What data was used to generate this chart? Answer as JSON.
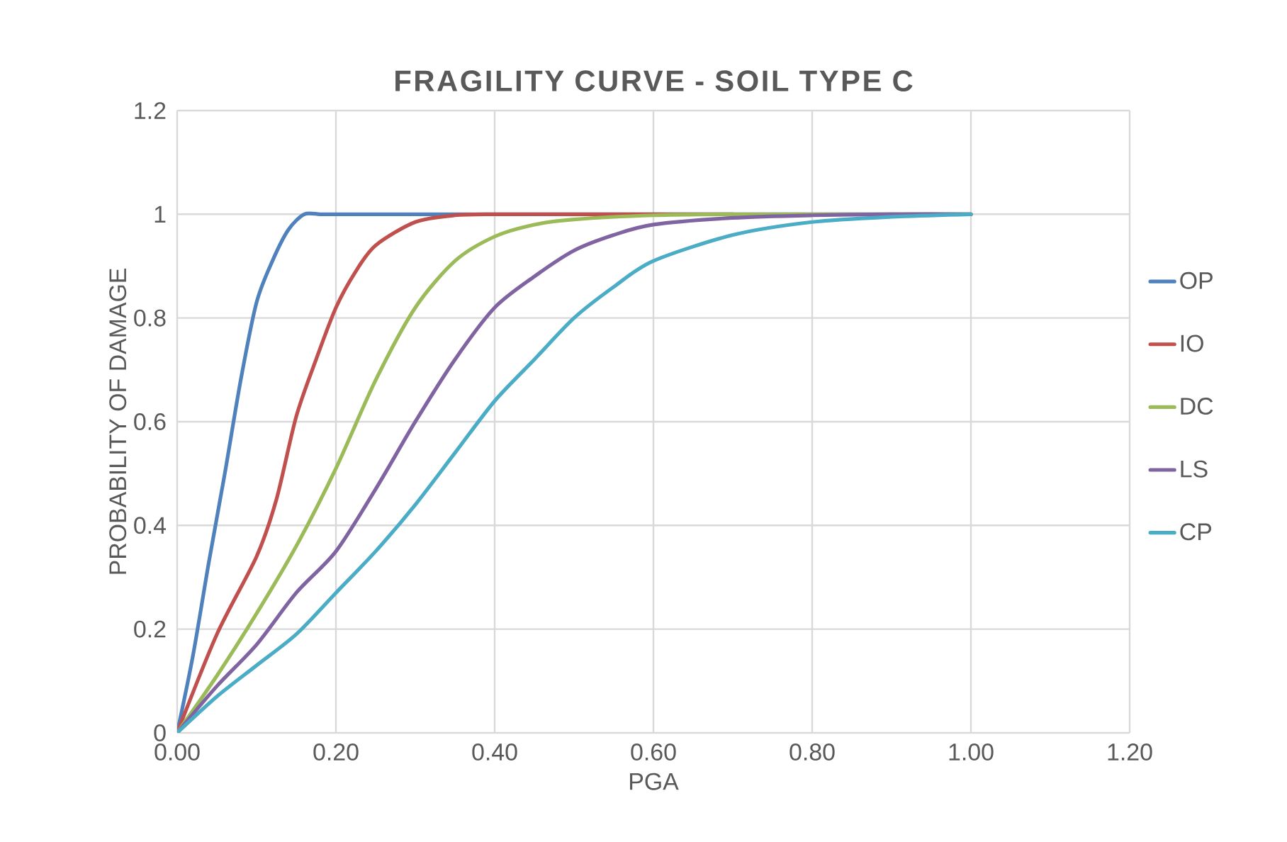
{
  "chart_data": {
    "type": "line",
    "title": "FRAGILITY CURVE - SOIL TYPE C",
    "xlabel": "PGA",
    "ylabel": "PROBABILITY OF DAMAGE",
    "xlim": [
      0,
      1.2
    ],
    "ylim": [
      0,
      1.2
    ],
    "xticks": [
      {
        "value": 0,
        "label": "0.00"
      },
      {
        "value": 0.2,
        "label": "0.20"
      },
      {
        "value": 0.4,
        "label": "0.40"
      },
      {
        "value": 0.6,
        "label": "0.60"
      },
      {
        "value": 0.8,
        "label": "0.80"
      },
      {
        "value": 1,
        "label": "1.00"
      },
      {
        "value": 1.2,
        "label": "1.20"
      }
    ],
    "yticks": [
      0,
      0.2,
      0.4,
      0.6,
      0.8,
      1,
      1.2
    ],
    "grid": true,
    "legend": "right",
    "marker": "none",
    "line_style": "solid",
    "series": [
      {
        "name": "OP",
        "color": "#4f81bd",
        "x": [
          0,
          0.02,
          0.04,
          0.06,
          0.08,
          0.1,
          0.12,
          0.14,
          0.16,
          0.18,
          0.2,
          0.3,
          0.4,
          0.5,
          0.6,
          0.7,
          0.8,
          0.9,
          1
        ],
        "values": [
          0,
          0.15,
          0.33,
          0.5,
          0.68,
          0.83,
          0.91,
          0.97,
          1,
          1,
          1,
          1,
          1,
          1,
          1,
          1,
          1,
          1,
          1
        ]
      },
      {
        "name": "IO",
        "color": "#c0504d",
        "x": [
          0,
          0.05,
          0.1,
          0.125,
          0.15,
          0.175,
          0.2,
          0.225,
          0.25,
          0.3,
          0.35,
          0.4,
          0.5,
          0.6,
          0.7
        ],
        "values": [
          0,
          0.19,
          0.34,
          0.45,
          0.61,
          0.72,
          0.82,
          0.89,
          0.94,
          0.985,
          0.998,
          1,
          1,
          1,
          1
        ]
      },
      {
        "name": "DC",
        "color": "#9bbb59",
        "x": [
          0,
          0.05,
          0.1,
          0.15,
          0.2,
          0.25,
          0.3,
          0.35,
          0.4,
          0.45,
          0.5,
          0.6,
          0.7,
          0.8,
          0.9,
          1
        ],
        "values": [
          0,
          0.11,
          0.23,
          0.36,
          0.51,
          0.68,
          0.82,
          0.91,
          0.957,
          0.98,
          0.99,
          0.998,
          1,
          1,
          1,
          1
        ]
      },
      {
        "name": "LS",
        "color": "#8064a2",
        "x": [
          0,
          0.05,
          0.1,
          0.15,
          0.2,
          0.25,
          0.3,
          0.35,
          0.4,
          0.45,
          0.5,
          0.55,
          0.6,
          0.7,
          0.8,
          0.9,
          1
        ],
        "values": [
          0,
          0.09,
          0.17,
          0.27,
          0.35,
          0.47,
          0.6,
          0.72,
          0.82,
          0.88,
          0.93,
          0.96,
          0.98,
          0.993,
          0.998,
          1,
          1
        ]
      },
      {
        "name": "CP",
        "color": "#4bacc6",
        "x": [
          0,
          0.05,
          0.1,
          0.15,
          0.2,
          0.25,
          0.3,
          0.35,
          0.4,
          0.45,
          0.5,
          0.55,
          0.6,
          0.7,
          0.8,
          0.9,
          1
        ],
        "values": [
          0,
          0.07,
          0.13,
          0.19,
          0.27,
          0.35,
          0.44,
          0.54,
          0.64,
          0.72,
          0.8,
          0.86,
          0.91,
          0.96,
          0.985,
          0.995,
          1
        ]
      }
    ]
  }
}
